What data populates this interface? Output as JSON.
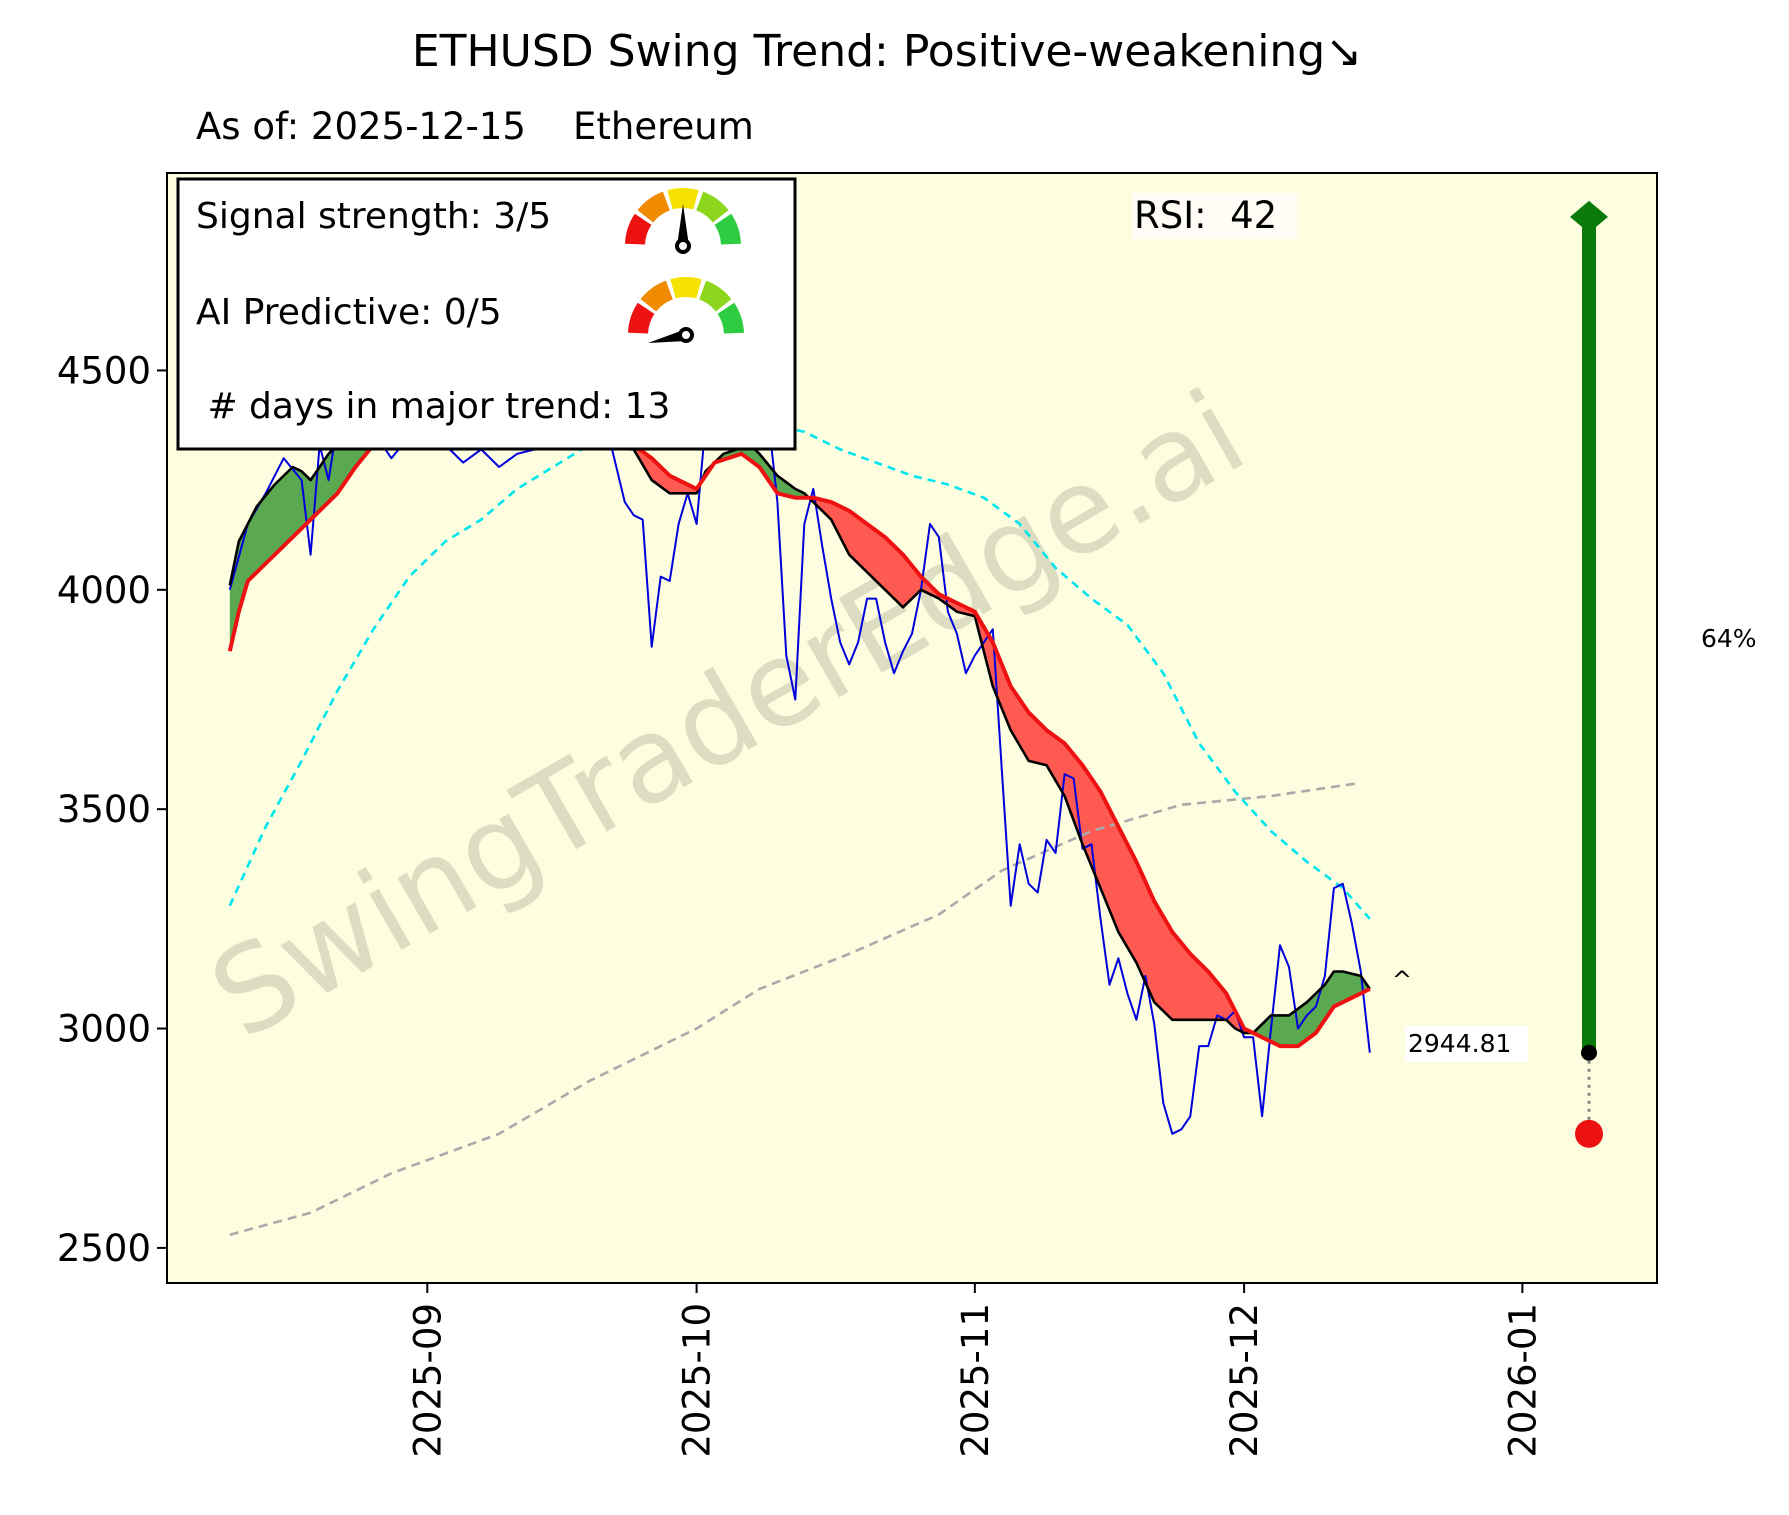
{
  "chart_data": {
    "type": "line",
    "title": "ETHUSD  Swing Trend: Positive-weakening↘",
    "subtitle": "As of: 2025-12-15    Ethereum",
    "watermark": "SwingTraderEdge.ai",
    "panel": {
      "signal_strength": "Signal strength: 3/5",
      "ai_predictive": "AI Predictive: 0/5",
      "days_in_trend": " # days in major trend: 13",
      "signal_strength_value": 3,
      "ai_predictive_value": 0
    },
    "rsi_label": "RSI:  42",
    "last_price_label": "2944.81",
    "target_pct_label": "64%",
    "caret_label": "^",
    "y_ticks": [
      2500,
      3000,
      3500,
      4000,
      4500
    ],
    "y_tick_labels": [
      "2500",
      "3000",
      "3500",
      "4000",
      "4500"
    ],
    "x_tick_dates": [
      "2025-09-01",
      "2025-10-01",
      "2025-11-01",
      "2025-12-01",
      "2026-01-01"
    ],
    "x_tick_labels": [
      "2025-09",
      "2025-10",
      "2025-11",
      "2025-12",
      "2026-01"
    ],
    "xlim": [
      "2025-08-03",
      "2026-01-16"
    ],
    "ylim": [
      2420,
      4950
    ],
    "colors": {
      "background": "#fdfde0",
      "price": "#0000dd",
      "fast_ma": "#000000",
      "slow_ma": "#ee1111",
      "fill_positive": "#5aa84f",
      "fill_negative": "#ff5a52",
      "upper_band": "#00e5ee",
      "long_ma": "#aaaaaa",
      "target_bar": "#0a7a0a",
      "stop_dot": "#ee1111"
    },
    "series": [
      {
        "key": "price",
        "x": [
          "2025-08-10",
          "2025-08-12",
          "2025-08-14",
          "2025-08-16",
          "2025-08-18",
          "2025-08-19",
          "2025-08-20",
          "2025-08-21",
          "2025-08-22",
          "2025-08-23",
          "2025-08-24",
          "2025-08-26",
          "2025-08-28",
          "2025-08-30",
          "2025-09-01",
          "2025-09-03",
          "2025-09-05",
          "2025-09-07",
          "2025-09-09",
          "2025-09-11",
          "2025-09-13",
          "2025-09-15",
          "2025-09-17",
          "2025-09-19",
          "2025-09-21",
          "2025-09-23",
          "2025-09-24",
          "2025-09-25",
          "2025-09-26",
          "2025-09-27",
          "2025-09-28",
          "2025-09-29",
          "2025-09-30",
          "2025-10-01",
          "2025-10-02",
          "2025-10-03",
          "2025-10-04",
          "2025-10-06",
          "2025-10-08",
          "2025-10-09",
          "2025-10-10",
          "2025-10-11",
          "2025-10-12",
          "2025-10-13",
          "2025-10-14",
          "2025-10-15",
          "2025-10-16",
          "2025-10-17",
          "2025-10-18",
          "2025-10-19",
          "2025-10-20",
          "2025-10-21",
          "2025-10-22",
          "2025-10-23",
          "2025-10-24",
          "2025-10-25",
          "2025-10-26",
          "2025-10-27",
          "2025-10-28",
          "2025-10-29",
          "2025-10-30",
          "2025-10-31",
          "2025-11-01",
          "2025-11-02",
          "2025-11-03",
          "2025-11-04",
          "2025-11-05",
          "2025-11-06",
          "2025-11-07",
          "2025-11-08",
          "2025-11-09",
          "2025-11-10",
          "2025-11-11",
          "2025-11-12",
          "2025-11-13",
          "2025-11-14",
          "2025-11-15",
          "2025-11-16",
          "2025-11-17",
          "2025-11-18",
          "2025-11-19",
          "2025-11-20",
          "2025-11-21",
          "2025-11-22",
          "2025-11-23",
          "2025-11-24",
          "2025-11-25",
          "2025-11-26",
          "2025-11-27",
          "2025-11-28",
          "2025-11-29",
          "2025-11-30",
          "2025-12-01",
          "2025-12-02",
          "2025-12-03",
          "2025-12-04",
          "2025-12-05",
          "2025-12-06",
          "2025-12-07",
          "2025-12-08",
          "2025-12-09",
          "2025-12-10",
          "2025-12-11",
          "2025-12-12",
          "2025-12-13",
          "2025-12-14",
          "2025-12-15"
        ],
        "y": [
          4000,
          4150,
          4220,
          4300,
          4250,
          4080,
          4330,
          4250,
          4380,
          4480,
          4380,
          4360,
          4300,
          4350,
          4340,
          4330,
          4290,
          4320,
          4280,
          4310,
          4320,
          4350,
          4390,
          4420,
          4370,
          4200,
          4170,
          4160,
          3870,
          4030,
          4020,
          4150,
          4220,
          4150,
          4380,
          4460,
          4420,
          4350,
          4330,
          4390,
          4200,
          3850,
          3750,
          4150,
          4230,
          4100,
          3980,
          3880,
          3830,
          3880,
          3980,
          3980,
          3880,
          3810,
          3860,
          3900,
          4000,
          4150,
          4120,
          3950,
          3900,
          3810,
          3850,
          3880,
          3910,
          3590,
          3280,
          3420,
          3330,
          3310,
          3430,
          3400,
          3580,
          3570,
          3410,
          3420,
          3250,
          3100,
          3160,
          3080,
          3020,
          3120,
          3010,
          2830,
          2760,
          2770,
          2800,
          2960,
          2960,
          3030,
          3020,
          3040,
          2980,
          2980,
          2800,
          3000,
          3190,
          3140,
          3000,
          3030,
          3050,
          3120,
          3320,
          3330,
          3240,
          3130,
          2944.81
        ]
      },
      {
        "key": "fast_ma",
        "x": [
          "2025-08-10",
          "2025-08-11",
          "2025-08-13",
          "2025-08-15",
          "2025-08-17",
          "2025-08-18",
          "2025-08-19",
          "2025-08-20",
          "2025-08-21",
          "2025-08-22",
          "2025-09-14",
          "2025-09-24",
          "2025-09-26",
          "2025-09-28",
          "2025-09-30",
          "2025-10-01",
          "2025-10-02",
          "2025-10-04",
          "2025-10-07",
          "2025-10-08",
          "2025-10-10",
          "2025-10-12",
          "2025-10-13",
          "2025-10-16",
          "2025-10-18",
          "2025-10-20",
          "2025-10-22",
          "2025-10-24",
          "2025-10-26",
          "2025-10-28",
          "2025-10-30",
          "2025-11-01",
          "2025-11-03",
          "2025-11-05",
          "2025-11-07",
          "2025-11-09",
          "2025-11-11",
          "2025-11-13",
          "2025-11-15",
          "2025-11-17",
          "2025-11-19",
          "2025-11-21",
          "2025-11-23",
          "2025-11-25",
          "2025-11-27",
          "2025-11-29",
          "2025-11-30",
          "2025-12-01",
          "2025-12-02",
          "2025-12-04",
          "2025-12-06",
          "2025-12-08",
          "2025-12-10",
          "2025-12-11",
          "2025-12-12",
          "2025-12-14",
          "2025-12-15"
        ],
        "y": [
          4010,
          4110,
          4190,
          4240,
          4280,
          4270,
          4250,
          4280,
          4310,
          4330,
          4330,
          4320,
          4250,
          4220,
          4220,
          4220,
          4270,
          4310,
          4330,
          4310,
          4260,
          4230,
          4220,
          4160,
          4080,
          4040,
          4000,
          3960,
          4000,
          3980,
          3950,
          3940,
          3780,
          3680,
          3610,
          3600,
          3530,
          3420,
          3320,
          3220,
          3150,
          3060,
          3020,
          3020,
          3020,
          3020,
          3000,
          2990,
          2990,
          3030,
          3030,
          3060,
          3100,
          3130,
          3130,
          3120,
          3090
        ]
      },
      {
        "key": "slow_ma",
        "x": [
          "2025-08-10",
          "2025-08-11",
          "2025-08-12",
          "2025-08-14",
          "2025-08-16",
          "2025-08-18",
          "2025-08-20",
          "2025-08-22",
          "2025-08-24",
          "2025-08-26",
          "2025-09-24",
          "2025-09-26",
          "2025-09-28",
          "2025-10-01",
          "2025-10-03",
          "2025-10-06",
          "2025-10-08",
          "2025-10-10",
          "2025-10-12",
          "2025-10-14",
          "2025-10-16",
          "2025-10-18",
          "2025-10-20",
          "2025-10-22",
          "2025-10-24",
          "2025-10-26",
          "2025-10-28",
          "2025-10-30",
          "2025-11-01",
          "2025-11-03",
          "2025-11-05",
          "2025-11-07",
          "2025-11-09",
          "2025-11-11",
          "2025-11-13",
          "2025-11-15",
          "2025-11-17",
          "2025-11-19",
          "2025-11-21",
          "2025-11-23",
          "2025-11-25",
          "2025-11-27",
          "2025-11-29",
          "2025-12-01",
          "2025-12-03",
          "2025-12-05",
          "2025-12-07",
          "2025-12-09",
          "2025-12-11",
          "2025-12-13",
          "2025-12-15"
        ],
        "y": [
          3860,
          3950,
          4020,
          4060,
          4100,
          4140,
          4180,
          4220,
          4280,
          4330,
          4330,
          4300,
          4260,
          4230,
          4290,
          4310,
          4280,
          4220,
          4210,
          4210,
          4200,
          4180,
          4150,
          4120,
          4080,
          4030,
          3990,
          3970,
          3950,
          3880,
          3780,
          3720,
          3680,
          3650,
          3600,
          3540,
          3460,
          3380,
          3290,
          3220,
          3170,
          3130,
          3080,
          3000,
          2980,
          2960,
          2960,
          2990,
          3050,
          3070,
          3090
        ]
      },
      {
        "key": "upper_band",
        "x": [
          "2025-08-10",
          "2025-08-14",
          "2025-08-18",
          "2025-08-22",
          "2025-08-26",
          "2025-08-30",
          "2025-09-03",
          "2025-09-07",
          "2025-09-11",
          "2025-09-15",
          "2025-09-19",
          "2025-09-23",
          "2025-09-27",
          "2025-10-01",
          "2025-10-05",
          "2025-10-09",
          "2025-10-13",
          "2025-10-17",
          "2025-10-21",
          "2025-10-25",
          "2025-10-29",
          "2025-11-02",
          "2025-11-06",
          "2025-11-10",
          "2025-11-14",
          "2025-11-18",
          "2025-11-22",
          "2025-11-26",
          "2025-11-30",
          "2025-12-04",
          "2025-12-08",
          "2025-12-12",
          "2025-12-15"
        ],
        "y": [
          3280,
          3460,
          3610,
          3770,
          3910,
          4030,
          4110,
          4160,
          4230,
          4280,
          4330,
          4360,
          4380,
          4390,
          4390,
          4380,
          4360,
          4320,
          4290,
          4260,
          4240,
          4210,
          4150,
          4050,
          3980,
          3920,
          3810,
          3650,
          3540,
          3450,
          3380,
          3320,
          3250
        ]
      },
      {
        "key": "long_ma",
        "x": [
          "2025-08-10",
          "2025-08-19",
          "2025-08-28",
          "2025-09-09",
          "2025-09-19",
          "2025-10-01",
          "2025-10-08",
          "2025-10-18",
          "2025-10-28",
          "2025-11-04",
          "2025-11-14",
          "2025-11-24",
          "2025-12-04",
          "2025-12-14"
        ],
        "y": [
          2530,
          2580,
          2670,
          2760,
          2880,
          3000,
          3090,
          3170,
          3260,
          3360,
          3450,
          3510,
          3530,
          3560
        ]
      }
    ],
    "target_price": 4850,
    "stop_price": 2760
  }
}
